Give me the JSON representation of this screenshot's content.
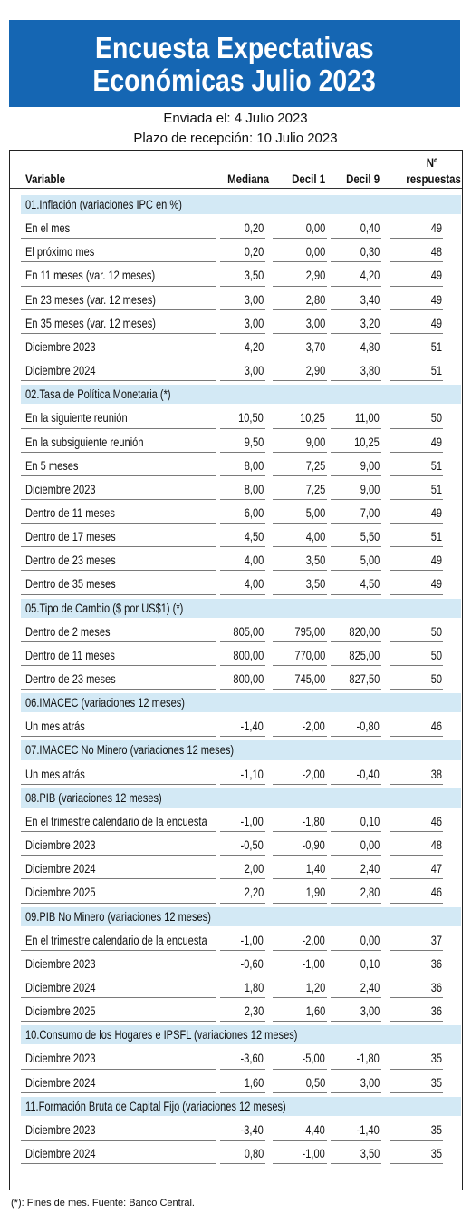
{
  "header": {
    "title": [
      "Encuesta Expectativas",
      "Económicas Julio 2023"
    ],
    "sent": "Enviada el: 4 Julio 2023",
    "deadline": "Plazo de recepción: 10 Julio 2023"
  },
  "table": {
    "columns": [
      "Variable",
      "Mediana",
      "Decil 1",
      "Decil 9",
      "Nº",
      "respuestas"
    ],
    "sections": [
      {
        "title": "01.Inflación (variaciones IPC en %)",
        "rows": [
          [
            "En el mes",
            "0,20",
            "0,00",
            "0,40",
            49
          ],
          [
            "El próximo mes",
            "0,20",
            "0,00",
            "0,30",
            48
          ],
          [
            "En 11 meses (var. 12 meses)",
            "3,50",
            "2,90",
            "4,20",
            49
          ],
          [
            "En 23 meses (var. 12 meses)",
            "3,00",
            "2,80",
            "3,40",
            49
          ],
          [
            "En 35 meses (var. 12 meses)",
            "3,00",
            "3,00",
            "3,20",
            49
          ],
          [
            "Diciembre 2023",
            "4,20",
            "3,70",
            "4,80",
            51
          ],
          [
            "Diciembre 2024",
            "3,00",
            "2,90",
            "3,80",
            51
          ]
        ]
      },
      {
        "title": "02.Tasa de Política Monetaria  (*)",
        "rows": [
          [
            "En la siguiente reunión",
            "10,50",
            "10,25",
            "11,00",
            50
          ],
          [
            "En la subsiguiente reunión",
            "9,50",
            "9,00",
            "10,25",
            49
          ],
          [
            "En 5 meses",
            "8,00",
            "7,25",
            "9,00",
            51
          ],
          [
            "Diciembre 2023",
            "8,00",
            "7,25",
            "9,00",
            51
          ],
          [
            "Dentro de 11 meses",
            "6,00",
            "5,00",
            "7,00",
            49
          ],
          [
            "Dentro de 17 meses",
            "4,50",
            "4,00",
            "5,50",
            51
          ],
          [
            "Dentro de 23 meses",
            "4,00",
            "3,50",
            "5,00",
            49
          ],
          [
            "Dentro de 35 meses",
            "4,00",
            "3,50",
            "4,50",
            49
          ]
        ]
      },
      {
        "title": "05.Tipo de Cambio  ($ por US$1) (*)",
        "rows": [
          [
            "Dentro de 2 meses",
            "805,00",
            "795,00",
            "820,00",
            50
          ],
          [
            "Dentro de 11 meses",
            "800,00",
            "770,00",
            "825,00",
            50
          ],
          [
            "Dentro de 23 meses",
            "800,00",
            "745,00",
            "827,50",
            50
          ]
        ]
      },
      {
        "title": "06.IMACEC  (variaciones 12 meses)",
        "rows": [
          [
            "Un mes atrás",
            "-1,40",
            "-2,00",
            "-0,80",
            46
          ]
        ]
      },
      {
        "title": "07.IMACEC No Minero (variaciones 12 meses)",
        "rows": [
          [
            "Un mes atrás",
            "-1,10",
            "-2,00",
            "-0,40",
            38
          ]
        ]
      },
      {
        "title": "08.PIB  (variaciones 12 meses)",
        "rows": [
          [
            "En el trimestre calendario de la encuesta",
            "-1,00",
            "-1,80",
            "0,10",
            46
          ],
          [
            "Diciembre 2023",
            "-0,50",
            "-0,90",
            "0,00",
            48
          ],
          [
            "Diciembre 2024",
            "2,00",
            "1,40",
            "2,40",
            47
          ],
          [
            "Diciembre 2025",
            "2,20",
            "1,90",
            "2,80",
            46
          ]
        ]
      },
      {
        "title": "09.PIB No Minero (variaciones 12 meses)",
        "rows": [
          [
            "En el trimestre calendario de la encuesta",
            "-1,00",
            "-2,00",
            "0,00",
            37
          ],
          [
            "Diciembre 2023",
            "-0,60",
            "-1,00",
            "0,10",
            36
          ],
          [
            "Diciembre 2024",
            "1,80",
            "1,20",
            "2,40",
            36
          ],
          [
            "Diciembre 2025",
            "2,30",
            "1,60",
            "3,00",
            36
          ]
        ]
      },
      {
        "title": "10.Consumo de los Hogares e IPSFL  (variaciones 12 meses)",
        "rows": [
          [
            "Diciembre 2023",
            "-3,60",
            "-5,00",
            "-1,80",
            35
          ],
          [
            "Diciembre 2024",
            "1,60",
            "0,50",
            "3,00",
            35
          ]
        ]
      },
      {
        "title": "11.Formación Bruta de Capital Fijo  (variaciones 12 meses)",
        "rows": [
          [
            "Diciembre 2023",
            "-3,40",
            "-4,40",
            "-1,40",
            35
          ],
          [
            "Diciembre 2024",
            "0,80",
            "-1,00",
            "3,50",
            35
          ]
        ]
      }
    ]
  },
  "footnote": "(*): Fines de mes. Fuente: Banco Central."
}
